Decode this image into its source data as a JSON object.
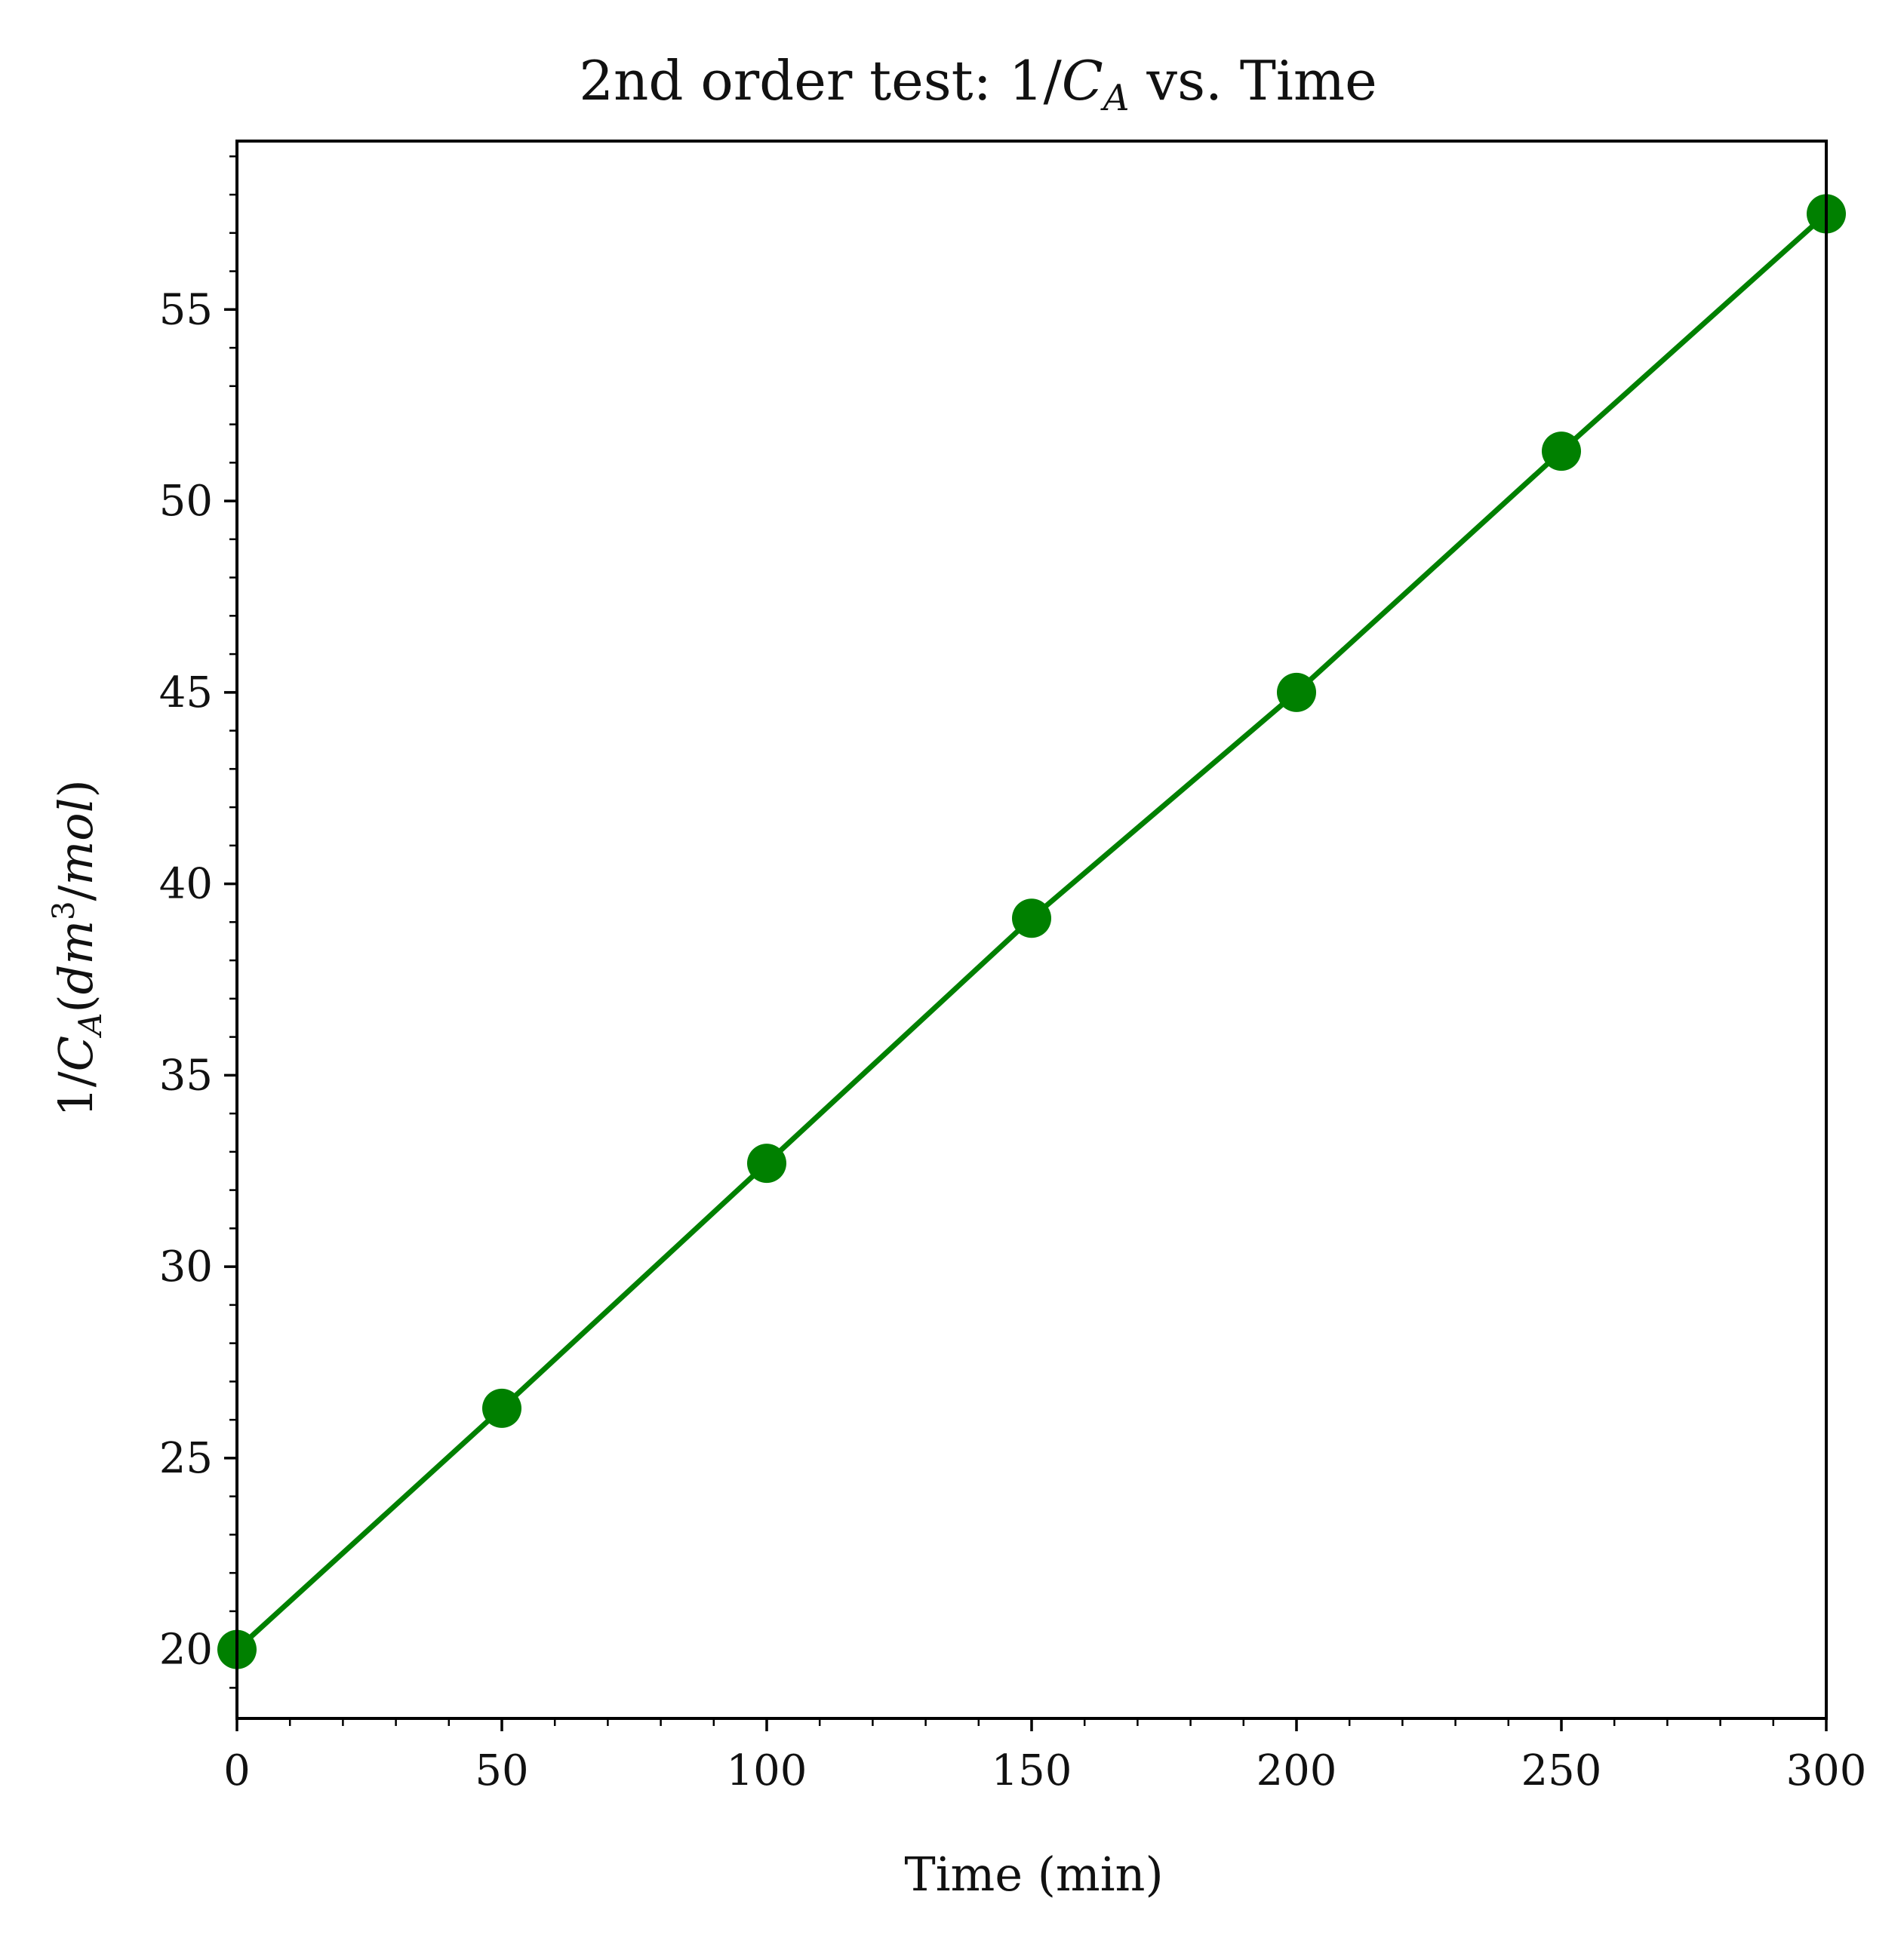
{
  "chart_data": {
    "type": "line",
    "title": "2nd order test: 1/C_A vs. Time",
    "title_parts": {
      "prefix": "2nd order test: 1/",
      "var": "C",
      "sub": "A",
      "suffix": " vs. Time"
    },
    "xlabel": "Time (min)",
    "ylabel": "1/C_A(dm^3/mol)",
    "ylabel_parts": {
      "prefix": "1/",
      "var": "C",
      "sub": "A",
      "open": "(",
      "unit1": "dm",
      "sup": "3",
      "slash": "/",
      "unit2": "mol",
      "close": ")"
    },
    "xlim": [
      0,
      300
    ],
    "ylim": [
      18.2,
      59.4
    ],
    "x_ticks": [
      0,
      50,
      100,
      150,
      200,
      250,
      300
    ],
    "y_ticks": [
      20,
      25,
      30,
      35,
      40,
      45,
      50,
      55
    ],
    "x_tick_labels": [
      "0",
      "50",
      "100",
      "150",
      "200",
      "250",
      "300"
    ],
    "y_tick_labels": [
      "20",
      "25",
      "30",
      "35",
      "40",
      "45",
      "50",
      "55"
    ],
    "grid": false,
    "legend": "none",
    "series": [
      {
        "color": "#008000",
        "marker": "circle",
        "x": [
          0,
          50,
          100,
          150,
          200,
          250,
          300
        ],
        "y": [
          20.0,
          26.3,
          32.7,
          39.1,
          45.0,
          51.3,
          57.5
        ]
      }
    ]
  }
}
